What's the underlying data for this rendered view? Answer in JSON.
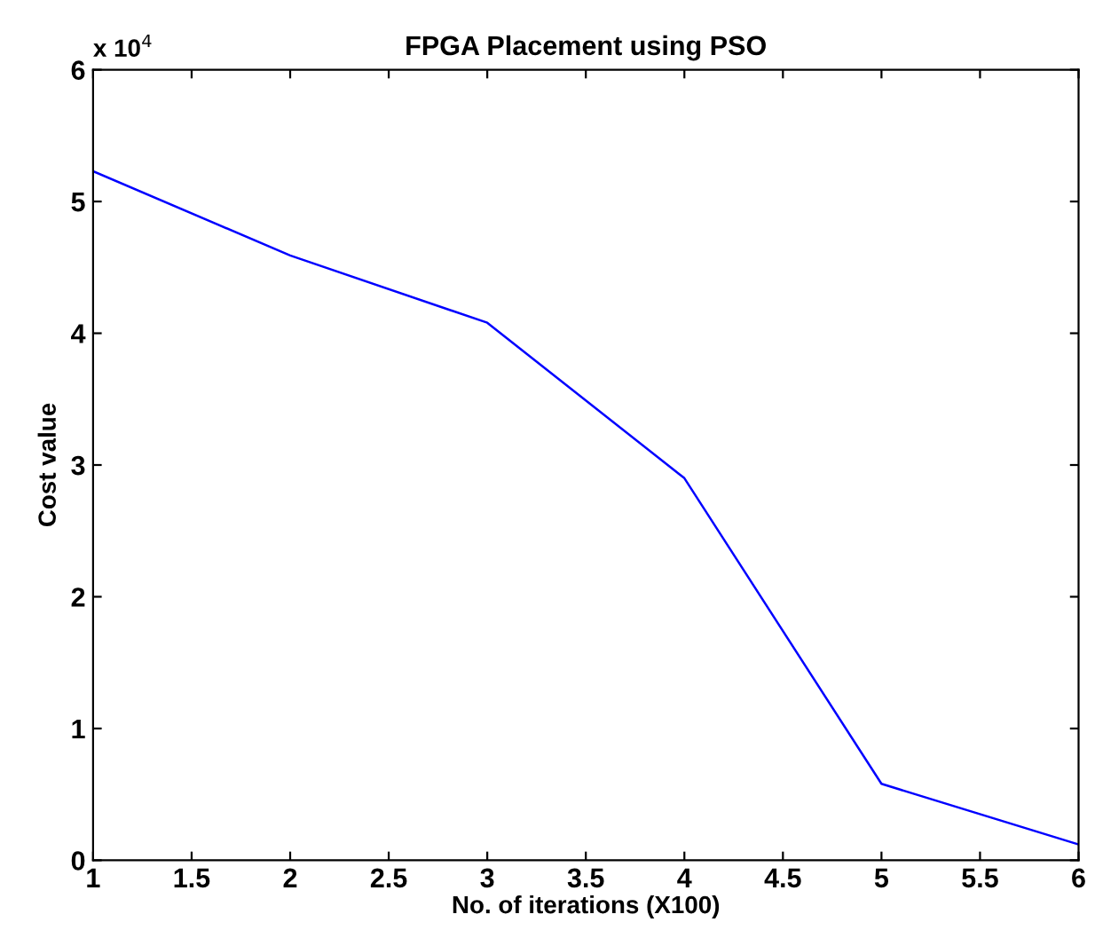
{
  "chart_data": {
    "type": "line",
    "title": "FPGA Placement using PSO",
    "xlabel": "No. of iterations (X100)",
    "ylabel": "Cost value",
    "annotations": [
      "x 10$^{4}$"
    ],
    "x": [
      1,
      2,
      3,
      4,
      5,
      6
    ],
    "series": [
      {
        "color": "#0000ff",
        "values": [
          5.23,
          4.59,
          4.08,
          2.9,
          0.58,
          0.12
        ]
      }
    ],
    "xlim": [
      1,
      6
    ],
    "xticks": [
      1,
      1.5,
      2,
      2.5,
      3,
      3.5,
      4,
      4.5,
      5,
      5.5,
      6
    ],
    "ylim": [
      0,
      6
    ],
    "yticks": [
      0,
      1,
      2,
      3,
      4,
      5,
      6
    ],
    "grid": false,
    "legend": false,
    "marker": "none",
    "line_style": "solid"
  }
}
